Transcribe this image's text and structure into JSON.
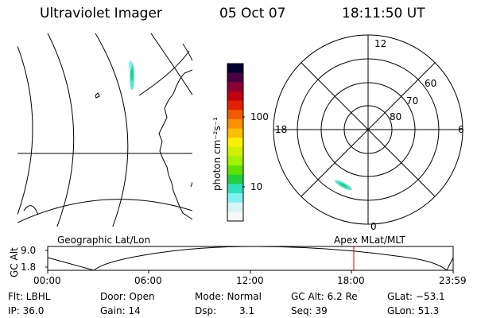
{
  "header": {
    "title": "Ultraviolet Imager",
    "date": "05 Oct 07",
    "time": "18:11:50 UT"
  },
  "color_bar": {
    "unit_label": "photon cm⁻²s⁻¹",
    "ticks": [
      "100",
      "10"
    ],
    "colors": [
      "#000030",
      "#4a0040",
      "#8a0030",
      "#c00010",
      "#e02000",
      "#f05a00",
      "#f89000",
      "#f8c000",
      "#f8f000",
      "#d0f000",
      "#a0f000",
      "#60e000",
      "#20d040",
      "#30e0c0",
      "#80f0f0",
      "#d8f4f4",
      "#f4f8f8"
    ]
  },
  "polar_plot": {
    "mlt_labels": {
      "top": "12",
      "left": "18",
      "right": "6",
      "bottom": "0"
    },
    "lat_labels": [
      "60",
      "70",
      "80"
    ]
  },
  "orbit_plot": {
    "left_label": "Geographic Lat/Lon",
    "right_label": "Apex MLat/MLT",
    "axis_label": "GC Alt",
    "y_ticks": [
      "9.0",
      "1.8"
    ],
    "x_ticks": [
      "00:00",
      "06:00",
      "12:00",
      "18:00",
      "23:59"
    ],
    "current_marker_color": "#e00000"
  },
  "info": {
    "filter": "Flt: LBHL",
    "ip": "IP: 36.0",
    "door": "Door: Open",
    "gain": "Gain: 14",
    "mode": "Mode:  Normal",
    "dsp_label": "Dsp:",
    "dsp_value": "3.1",
    "gc_alt": "GC Alt: 6.2 Re",
    "seq": "Seq: 39",
    "glat": "GLat: −53.1",
    "glon": "GLon:  51.3"
  }
}
